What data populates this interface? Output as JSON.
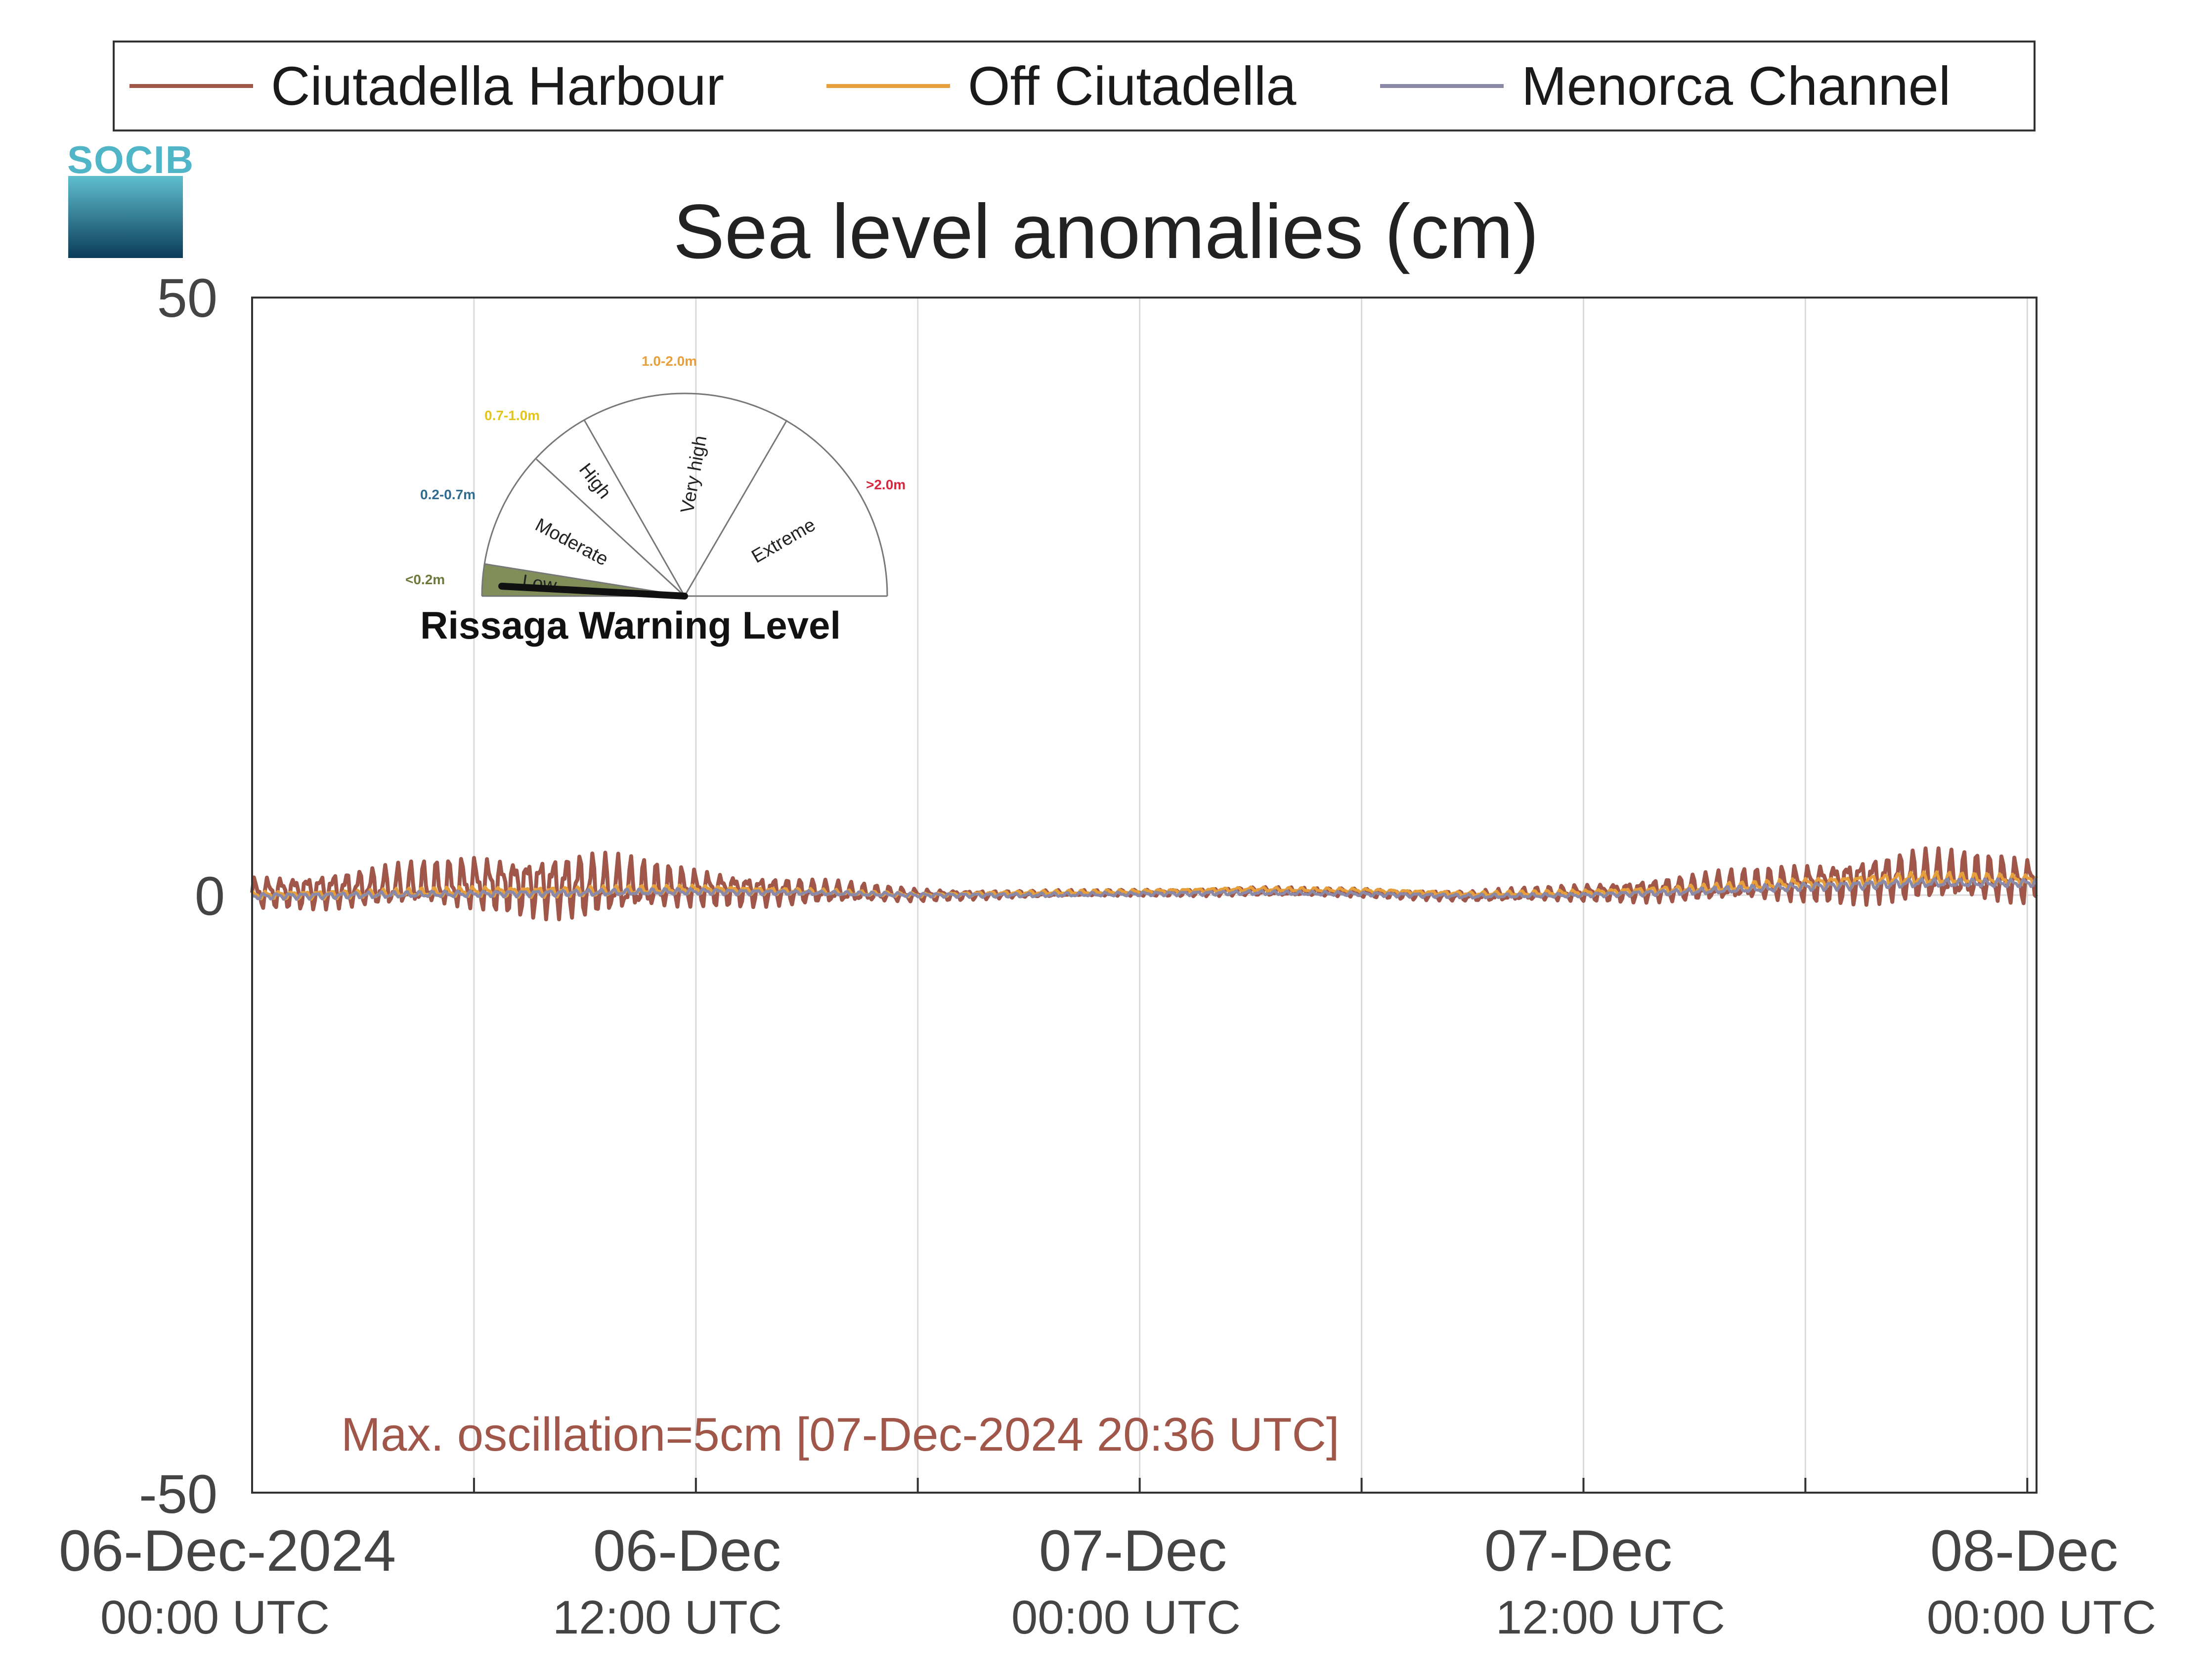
{
  "legend": {
    "items": [
      {
        "label": "Ciutadella Harbour",
        "color": "#a0574a"
      },
      {
        "label": "Off Ciutadella",
        "color": "#e69f3a"
      },
      {
        "label": "Menorca Channel",
        "color": "#8a8aa8"
      }
    ]
  },
  "logo": {
    "text": "SOCIB"
  },
  "warning_gauge": {
    "title": "Rissaga Warning Level",
    "current_level": "Low",
    "sectors": [
      {
        "label": "Low",
        "range": "<0.2m",
        "color": "#5a6b2e",
        "range_color": "#6b7a3c"
      },
      {
        "label": "Moderate",
        "range": "0.2-0.7m",
        "color": "#ffffff",
        "range_color": "#2f6a8f"
      },
      {
        "label": "High",
        "range": "0.7-1.0m",
        "color": "#ffffff",
        "range_color": "#e3c41a"
      },
      {
        "label": "Very high",
        "range": "1.0-2.0m",
        "color": "#ffffff",
        "range_color": "#e69f3a"
      },
      {
        "label": "Extreme",
        "range": ">2.0m",
        "color": "#ffffff",
        "range_color": "#d7263d"
      }
    ]
  },
  "annotation": "Max. oscillation=5cm [07-Dec-2024 20:36 UTC]",
  "chart_data": {
    "type": "line",
    "title": "Sea level anomalies (cm)",
    "ylim": [
      -50,
      50
    ],
    "yticks": [
      "50",
      "0",
      "-50"
    ],
    "ytick_values": [
      50,
      0,
      -50
    ],
    "xlim": [
      "2024-12-06 00:00",
      "2024-12-08 00:15"
    ],
    "xticks": [
      {
        "date": "06-Dec-2024",
        "time": "00:00 UTC",
        "value": "2024-12-06 00:00"
      },
      {
        "date": "06-Dec",
        "time": "12:00 UTC",
        "value": "2024-12-06 12:00"
      },
      {
        "date": "07-Dec",
        "time": "00:00 UTC",
        "value": "2024-12-07 00:00"
      },
      {
        "date": "07-Dec",
        "time": "12:00 UTC",
        "value": "2024-12-07 12:00"
      },
      {
        "date": "08-Dec",
        "time": "00:00 UTC",
        "value": "2024-12-08 00:00"
      }
    ],
    "grid": true,
    "legend_position": "top",
    "series": [
      {
        "name": "Ciutadella Harbour",
        "color": "#a0574a",
        "hours": [
          0,
          3,
          6,
          9,
          12,
          15,
          18,
          21,
          24,
          27,
          30,
          33,
          36,
          39,
          42,
          45,
          48,
          48.25
        ],
        "center": [
          0.2,
          0.6,
          1.0,
          0.8,
          0.6,
          0.3,
          0.0,
          0.1,
          0.2,
          0.3,
          0.2,
          -0.1,
          0.2,
          0.6,
          1.0,
          1.6,
          1.2,
          1.5
        ],
        "amplitude": [
          1.5,
          1.8,
          2.5,
          3.2,
          1.8,
          1.2,
          0.6,
          0.3,
          0.3,
          0.4,
          0.4,
          0.5,
          0.8,
          1.3,
          1.8,
          2.5,
          2.2,
          2.0
        ]
      },
      {
        "name": "Off Ciutadella",
        "color": "#e69f3a",
        "hours": [
          0,
          3,
          6,
          9,
          12,
          15,
          18,
          21,
          24,
          27,
          30,
          33,
          36,
          39,
          42,
          45,
          48,
          48.25
        ],
        "center": [
          0.0,
          0.1,
          0.3,
          0.3,
          0.5,
          0.3,
          0.0,
          0.2,
          0.3,
          0.5,
          0.4,
          0.1,
          0.2,
          0.5,
          1.0,
          1.4,
          1.3,
          1.4
        ],
        "amplitude": [
          0.4,
          0.4,
          0.5,
          0.5,
          0.4,
          0.3,
          0.2,
          0.2,
          0.2,
          0.2,
          0.2,
          0.2,
          0.3,
          0.4,
          0.5,
          0.6,
          0.5,
          0.5
        ]
      },
      {
        "name": "Menorca Channel",
        "color": "#8a8aa8",
        "hours": [
          0,
          3,
          6,
          9,
          12,
          15,
          18,
          21,
          24,
          27,
          30,
          33,
          36,
          39,
          42,
          45,
          48,
          48.25
        ],
        "center": [
          -0.1,
          0.0,
          0.1,
          0.2,
          0.3,
          0.2,
          0.0,
          0.0,
          0.1,
          0.2,
          0.1,
          -0.1,
          0.0,
          0.3,
          0.7,
          1.0,
          1.0,
          1.1
        ],
        "amplitude": [
          0.3,
          0.3,
          0.3,
          0.3,
          0.3,
          0.2,
          0.2,
          0.2,
          0.2,
          0.2,
          0.2,
          0.2,
          0.2,
          0.3,
          0.4,
          0.4,
          0.4,
          0.4
        ]
      }
    ]
  }
}
